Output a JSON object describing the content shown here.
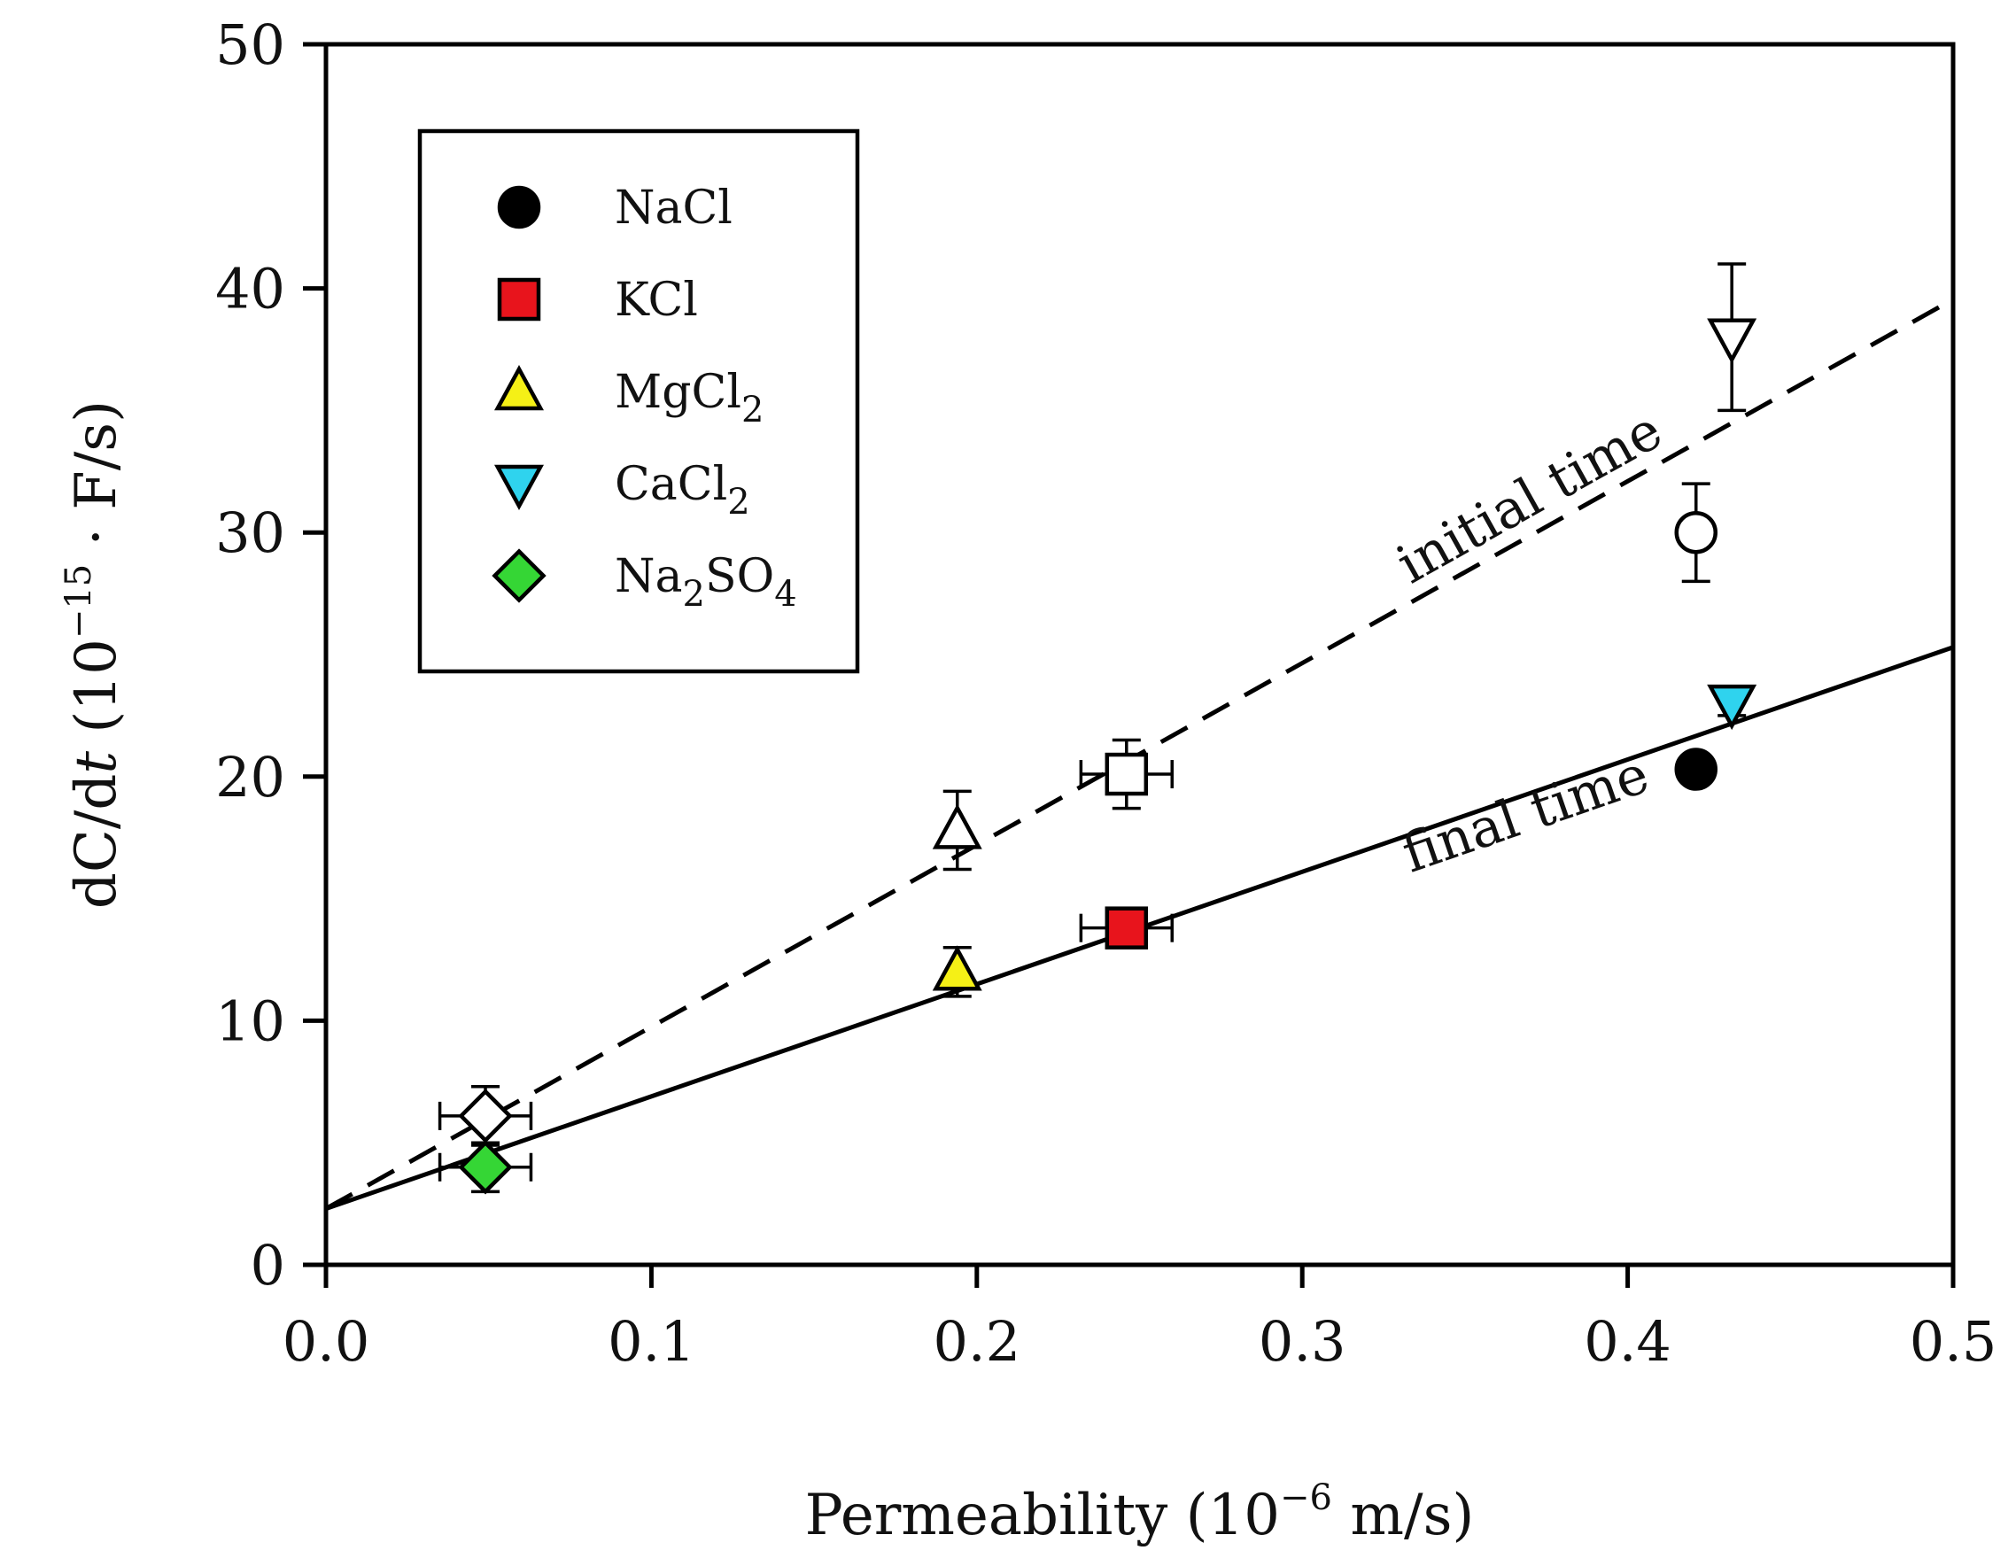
{
  "chart_data": {
    "type": "scatter",
    "xlim": [
      0.0,
      0.5
    ],
    "ylim": [
      0,
      50
    ],
    "xticks": [
      "0.0",
      "0.1",
      "0.2",
      "0.3",
      "0.4",
      "0.5"
    ],
    "yticks": [
      "0",
      "10",
      "20",
      "30",
      "40",
      "50"
    ],
    "xlabel": "Permeability (10−6 m/s)",
    "xlabel_parts": {
      "main": "Permeability (10",
      "sup": "−6",
      "tail": " m/s)"
    },
    "ylabel": "dC/dt (10−15 · F/s)",
    "ylabel_parts": {
      "pre": "dC/d",
      "ital": "t",
      "mid": " (10",
      "sup": "−15",
      "tail": " · F/s)"
    },
    "legend": {
      "position": "top-left",
      "entries": [
        {
          "label": "NaCl",
          "base": "NaCl",
          "sub": "",
          "tail": "",
          "marker": "circle",
          "color": "#000000"
        },
        {
          "label": "KCl",
          "base": "KCl",
          "sub": "",
          "tail": "",
          "marker": "square",
          "color": "#e8141c"
        },
        {
          "label": "MgCl2",
          "base": "MgCl",
          "sub": "2",
          "tail": "",
          "marker": "triangle-up",
          "color": "#f5f016"
        },
        {
          "label": "CaCl2",
          "base": "CaCl",
          "sub": "2",
          "tail": "",
          "marker": "triangle-down",
          "color": "#2fd3ee"
        },
        {
          "label": "Na2SO4",
          "base": "Na",
          "sub": "2",
          "tail": "SO",
          "sub2": "4",
          "marker": "diamond",
          "color": "#35d635"
        }
      ]
    },
    "series": [
      {
        "name": "initial time",
        "filled": false,
        "fit": {
          "intercept": 2.3,
          "slope": 74.5,
          "style": "dashed"
        },
        "points": [
          {
            "salt": "NaCl",
            "x": 0.421,
            "y": 30.0,
            "yerr": 2.0,
            "xerr": 0
          },
          {
            "salt": "KCl",
            "x": 0.246,
            "y": 20.1,
            "yerr": 1.4,
            "xerr": 0.014
          },
          {
            "salt": "MgCl2",
            "x": 0.194,
            "y": 17.8,
            "yerr": 1.6,
            "xerr": 0
          },
          {
            "salt": "CaCl2",
            "x": 0.432,
            "y": 38.0,
            "yerr": 3.0,
            "xerr": 0
          },
          {
            "salt": "Na2SO4",
            "x": 0.049,
            "y": 6.1,
            "yerr": 1.2,
            "xerr": 0.014
          }
        ]
      },
      {
        "name": "final time",
        "filled": true,
        "fit": {
          "intercept": 2.3,
          "slope": 46.0,
          "style": "solid"
        },
        "points": [
          {
            "salt": "NaCl",
            "x": 0.421,
            "y": 20.3,
            "yerr": 0,
            "xerr": 0
          },
          {
            "salt": "KCl",
            "x": 0.246,
            "y": 13.8,
            "yerr": 0.4,
            "xerr": 0.014
          },
          {
            "salt": "MgCl2",
            "x": 0.194,
            "y": 12.0,
            "yerr": 1.0,
            "xerr": 0
          },
          {
            "salt": "CaCl2",
            "x": 0.432,
            "y": 23.0,
            "yerr": 0.5,
            "xerr": 0
          },
          {
            "salt": "Na2SO4",
            "x": 0.049,
            "y": 4.0,
            "yerr": 1.0,
            "xerr": 0.014
          }
        ]
      }
    ],
    "annotations": [
      {
        "text": "initial time",
        "series": "initial time"
      },
      {
        "text": "final time",
        "series": "final time"
      }
    ]
  }
}
